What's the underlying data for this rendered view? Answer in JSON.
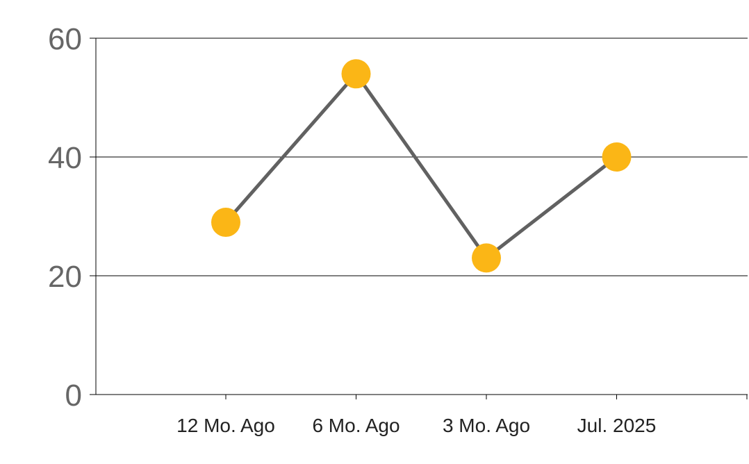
{
  "chart_data": {
    "type": "line",
    "title": "",
    "xlabel": "",
    "ylabel": "",
    "categories": [
      "12 Mo. Ago",
      "6 Mo. Ago",
      "3 Mo. Ago",
      "Jul. 2025"
    ],
    "series": [
      {
        "values": [
          29,
          54,
          23,
          40
        ]
      }
    ],
    "ylim": [
      0,
      60
    ],
    "yticks": [
      0,
      20,
      40,
      60
    ],
    "grid": true,
    "legend": "none",
    "colors": {
      "line": "#616161",
      "marker": "#FBB616",
      "grid": "#000000",
      "axis": "#000000",
      "y_tick_text": "#666666",
      "x_tick_text": "#222222"
    }
  }
}
